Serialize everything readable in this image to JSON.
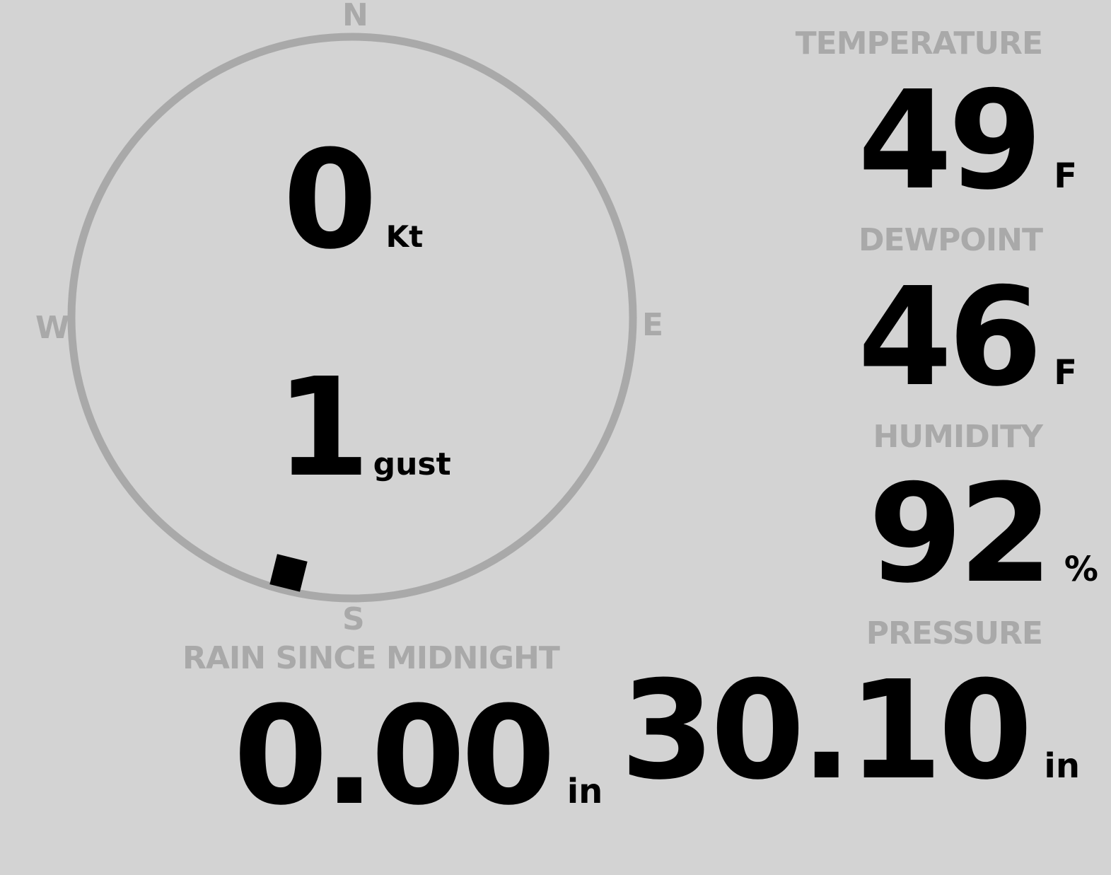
{
  "colors": {
    "background": "#d3d3d3",
    "label": "#a9a9a9",
    "value": "#000000"
  },
  "wind": {
    "speed": "0",
    "speed_unit": "Kt",
    "gust": "1",
    "gust_unit": "gust",
    "direction_degrees": 194,
    "compass": {
      "n": "N",
      "e": "E",
      "s": "S",
      "w": "W"
    }
  },
  "temperature": {
    "label": "TEMPERATURE",
    "value": "49",
    "unit": "F"
  },
  "dewpoint": {
    "label": "DEWPOINT",
    "value": "46",
    "unit": "F"
  },
  "humidity": {
    "label": "HUMIDITY",
    "value": "92",
    "unit": "%"
  },
  "rain": {
    "label": "RAIN SINCE MIDNIGHT",
    "value": "0.00",
    "unit": "in"
  },
  "pressure": {
    "label": "PRESSURE",
    "value": "30.10",
    "unit": "in"
  }
}
